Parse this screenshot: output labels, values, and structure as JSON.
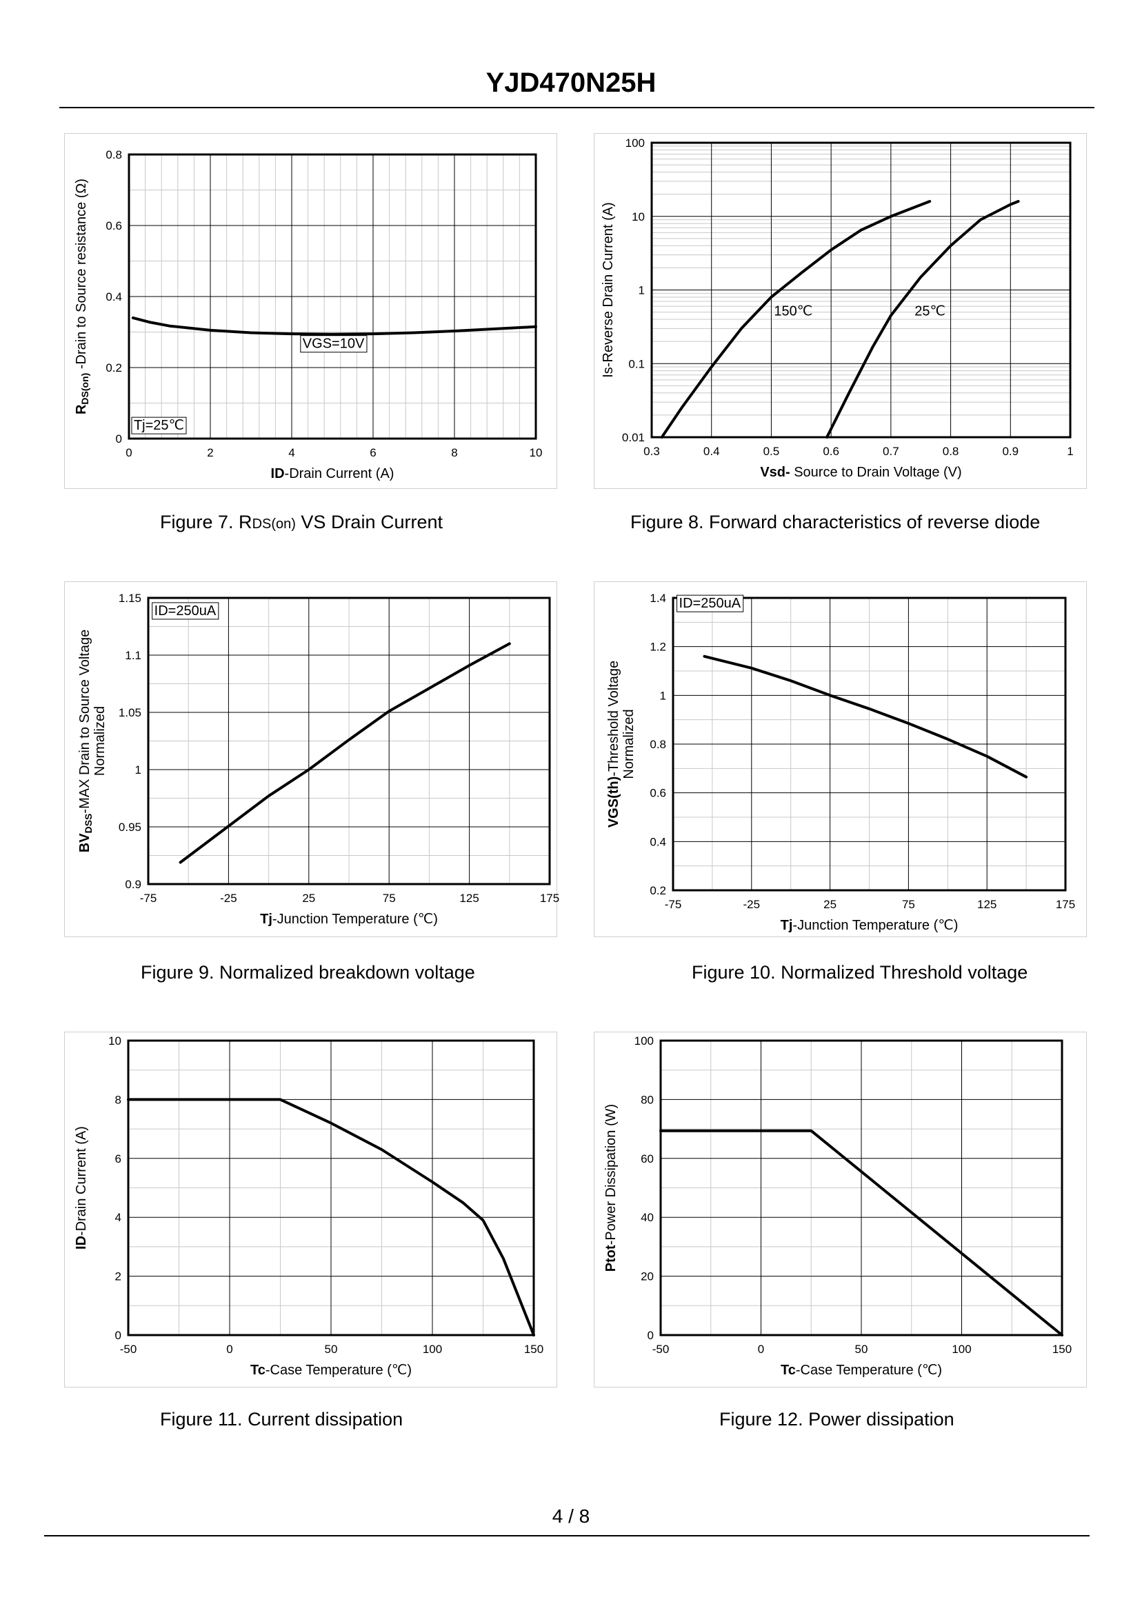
{
  "page": {
    "title": "YJD470N25H",
    "page_number": "4 / 8"
  },
  "captions": [
    {
      "prefix": "Figure 7.  R",
      "sub": "DS(on)",
      "suffix": " VS Drain Current"
    },
    {
      "text": "Figure 8.  Forward characteristics of reverse diode"
    },
    {
      "text": "Figure 9.  Normalized breakdown voltage"
    },
    {
      "text": "Figure 10.  Normalized Threshold voltage"
    },
    {
      "text": "Figure 11.  Current dissipation"
    },
    {
      "text": "Figure 12.  Power dissipation"
    }
  ],
  "chart_data": [
    {
      "id": "fig7",
      "type": "line",
      "xscale": "linear",
      "yscale": "linear",
      "xlim": [
        0,
        10
      ],
      "ylim": [
        0,
        0.8
      ],
      "xticks": [
        0,
        2,
        4,
        6,
        8,
        10
      ],
      "yticks": [
        0,
        0.2,
        0.4,
        0.6,
        0.8
      ],
      "xticklabels": [
        "0",
        "2",
        "4",
        "6",
        "8",
        "10"
      ],
      "yticklabels": [
        "0",
        "0.2",
        "0.4",
        "0.6",
        "0.8"
      ],
      "xminor": 5,
      "yminor": 2,
      "xlabel": {
        "bold": "ID",
        "rest": "-Drain Current (A)"
      },
      "ylabel": [
        {
          "bold": "R",
          "sub": "DS(on)",
          "rest": " -Drain to Source resistance (Ω)"
        }
      ],
      "series": [
        {
          "name": "VGS=10V",
          "x": [
            0.1,
            0.5,
            1,
            2,
            3,
            4,
            5,
            6,
            7,
            8,
            9,
            10
          ],
          "y": [
            0.34,
            0.328,
            0.317,
            0.305,
            0.298,
            0.295,
            0.294,
            0.295,
            0.298,
            0.303,
            0.309,
            0.315
          ]
        }
      ],
      "annotations": [
        {
          "text": "VGS=10V",
          "x": 4.2,
          "y": 0.255,
          "box": true
        },
        {
          "text": "Tj=25℃",
          "x": 0.05,
          "y": 0.025,
          "box": true
        }
      ]
    },
    {
      "id": "fig8",
      "type": "line",
      "xscale": "linear",
      "yscale": "log",
      "xlim": [
        0.3,
        1
      ],
      "ylim": [
        0.01,
        100
      ],
      "xticks": [
        0.3,
        0.4,
        0.5,
        0.6,
        0.7,
        0.8,
        0.9,
        1
      ],
      "yticks": [
        0.01,
        0.1,
        1,
        10,
        100
      ],
      "xticklabels": [
        "0.3",
        "0.4",
        "0.5",
        "0.6",
        "0.7",
        "0.8",
        "0.9",
        "1"
      ],
      "yticklabels": [
        "0.01",
        "0.1",
        "1",
        "10",
        "100"
      ],
      "xminor": 1,
      "yminor": 10,
      "xlabel": {
        "bold": "Vsd-",
        "rest": " Source to Drain Voltage (V)"
      },
      "ylabel": [
        {
          "bold": "",
          "rest": "Is-Reverse  Drain Current  (A)"
        }
      ],
      "series": [
        {
          "name": "150℃",
          "x": [
            0.317,
            0.35,
            0.4,
            0.45,
            0.5,
            0.55,
            0.6,
            0.65,
            0.7,
            0.765
          ],
          "y": [
            0.01,
            0.025,
            0.09,
            0.3,
            0.8,
            1.7,
            3.5,
            6.5,
            10,
            16
          ]
        },
        {
          "name": "25℃",
          "x": [
            0.593,
            0.63,
            0.67,
            0.7,
            0.75,
            0.8,
            0.85,
            0.9,
            0.913
          ],
          "y": [
            0.01,
            0.04,
            0.17,
            0.45,
            1.5,
            4,
            9,
            14.5,
            16
          ]
        }
      ],
      "annotations": [
        {
          "text": "150℃",
          "x": 0.5,
          "y": 0.45,
          "box": false
        },
        {
          "text": "25℃",
          "x": 0.735,
          "y": 0.45,
          "box": false
        }
      ]
    },
    {
      "id": "fig9",
      "type": "line",
      "xscale": "linear",
      "yscale": "linear",
      "xlim": [
        -75,
        175
      ],
      "ylim": [
        0.9,
        1.15
      ],
      "xticks": [
        -75,
        -25,
        25,
        75,
        125,
        175
      ],
      "yticks": [
        0.9,
        0.95,
        1,
        1.05,
        1.1,
        1.15
      ],
      "xticklabels": [
        "-75",
        "-25",
        "25",
        "75",
        "125",
        "175"
      ],
      "yticklabels": [
        "0.9",
        "0.95",
        "1",
        "1.05",
        "1.1",
        "1.15"
      ],
      "xminor": 2,
      "yminor": 2,
      "xlabel": {
        "bold": "Tj",
        "rest": "-Junction  Temperature  (℃)"
      },
      "ylabel": [
        {
          "bold": "BV",
          "sub": "DSS",
          "rest": "-MAX Drain to Source Voltage"
        },
        {
          "bold": "",
          "rest": "Normalized"
        }
      ],
      "series": [
        {
          "name": "BVdss",
          "x": [
            -55,
            0,
            25,
            50,
            75,
            100,
            125,
            150
          ],
          "y": [
            0.919,
            0.977,
            1.0,
            1.026,
            1.051,
            1.071,
            1.091,
            1.11
          ]
        }
      ],
      "annotations": [
        {
          "text": "ID=250uA",
          "x": -73,
          "y": 1.135,
          "box": true
        }
      ]
    },
    {
      "id": "fig10",
      "type": "line",
      "xscale": "linear",
      "yscale": "linear",
      "xlim": [
        -75,
        175
      ],
      "ylim": [
        0.2,
        1.4
      ],
      "xticks": [
        -75,
        -25,
        25,
        75,
        125,
        175
      ],
      "yticks": [
        0.2,
        0.4,
        0.6,
        0.8,
        1,
        1.2,
        1.4
      ],
      "xticklabels": [
        "-75",
        "-25",
        "25",
        "75",
        "125",
        "175"
      ],
      "yticklabels": [
        "0.2",
        "0.4",
        "0.6",
        "0.8",
        "1",
        "1.2",
        "1.4"
      ],
      "xminor": 2,
      "yminor": 2,
      "xlabel": {
        "bold": "Tj",
        "rest": "-Junction  Temperature  (℃)"
      },
      "ylabel": [
        {
          "bold": "VGS(th)",
          "rest": "-Threshold  Voltage"
        },
        {
          "bold": "",
          "rest": "Normalized"
        }
      ],
      "series": [
        {
          "name": "VGS(th)",
          "x": [
            -55,
            -25,
            0,
            25,
            50,
            75,
            100,
            125,
            150
          ],
          "y": [
            1.16,
            1.112,
            1.06,
            1.0,
            0.945,
            0.885,
            0.82,
            0.75,
            0.665
          ]
        }
      ],
      "annotations": [
        {
          "text": "ID=250uA",
          "x": -73,
          "y": 1.36,
          "box": true
        }
      ]
    },
    {
      "id": "fig11",
      "type": "line",
      "xscale": "linear",
      "yscale": "linear",
      "xlim": [
        -50,
        150
      ],
      "ylim": [
        0,
        10
      ],
      "xticks": [
        -50,
        0,
        50,
        100,
        150
      ],
      "yticks": [
        0,
        2,
        4,
        6,
        8,
        10
      ],
      "xticklabels": [
        "-50",
        "0",
        "50",
        "100",
        "150"
      ],
      "yticklabels": [
        "0",
        "2",
        "4",
        "6",
        "8",
        "10"
      ],
      "xminor": 2,
      "yminor": 2,
      "xlabel": {
        "bold": "Tc",
        "rest": "-Case Temperature  (℃)"
      },
      "ylabel": [
        {
          "bold": "ID",
          "rest": "-Drain Current  (A)"
        }
      ],
      "series": [
        {
          "name": "ID",
          "x": [
            -50,
            25,
            50,
            75,
            100,
            115,
            125,
            135,
            150
          ],
          "y": [
            8,
            8,
            7.2,
            6.3,
            5.2,
            4.5,
            3.9,
            2.6,
            0
          ]
        }
      ],
      "annotations": []
    },
    {
      "id": "fig12",
      "type": "line",
      "xscale": "linear",
      "yscale": "linear",
      "xlim": [
        -50,
        150
      ],
      "ylim": [
        0,
        100
      ],
      "xticks": [
        -50,
        0,
        50,
        100,
        150
      ],
      "yticks": [
        0,
        20,
        40,
        60,
        80,
        100
      ],
      "xticklabels": [
        "-50",
        "0",
        "50",
        "100",
        "150"
      ],
      "yticklabels": [
        "0",
        "20",
        "40",
        "60",
        "80",
        "100"
      ],
      "xminor": 2,
      "yminor": 2,
      "xlabel": {
        "bold": "Tc",
        "rest": "-Case Temperature  (℃)"
      },
      "ylabel": [
        {
          "bold": "Ptot",
          "rest": "-Power Dissipation  (W)"
        }
      ],
      "series": [
        {
          "name": "Ptot",
          "x": [
            -50,
            25,
            150
          ],
          "y": [
            69.4,
            69.4,
            0
          ]
        }
      ],
      "annotations": []
    }
  ]
}
